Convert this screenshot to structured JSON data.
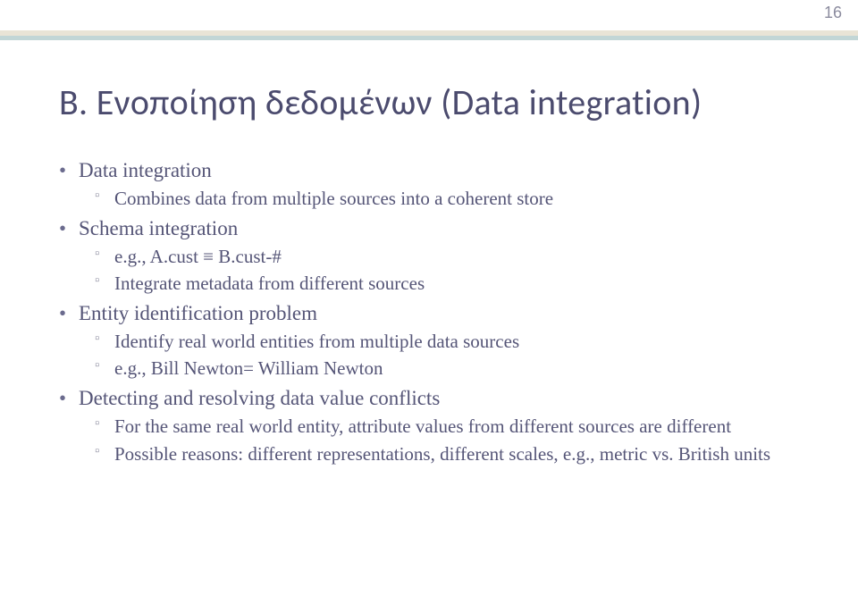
{
  "slide_number": "16",
  "title": "B. Ενοποίηση δεδομένων (Data integration)",
  "accent_top_color": "#e9e4d6",
  "accent_bottom_color": "#c2d6d6",
  "title_color": "#4b4b6e",
  "body_color": "#555577",
  "b1": {
    "label": "Data integration",
    "s1": "Combines data from multiple sources into a coherent store"
  },
  "b2": {
    "label": "Schema integration",
    "s1": "e.g., A.cust ≡ B.cust-#",
    "s2": "Integrate metadata from different sources"
  },
  "b3": {
    "label": "Entity identification problem",
    "s1": "Identify real world entities from multiple data sources",
    "s2": "e.g., Bill Newton= William Newton"
  },
  "b4": {
    "label": "Detecting and resolving data value conflicts",
    "s1": "For the same real world entity, attribute values from different sources are different",
    "s2": "Possible reasons: different representations, different scales, e.g., metric vs. British units"
  }
}
